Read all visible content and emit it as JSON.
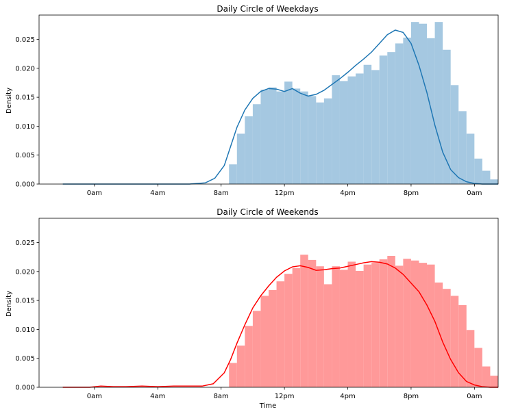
{
  "chart_data": [
    {
      "type": "histogram",
      "title": "Daily Circle of Weekdays",
      "xlabel": "",
      "ylabel": "Density",
      "xlim": [
        -3.5,
        25.5
      ],
      "ylim": [
        0,
        0.0292
      ],
      "x_ticks": [
        0,
        4,
        8,
        12,
        16,
        20,
        24
      ],
      "x_tick_labels": [
        "0am",
        "4am",
        "8am",
        "12pm",
        "4pm",
        "8pm",
        "0am"
      ],
      "y_ticks": [
        0.0,
        0.005,
        0.01,
        0.015,
        0.02,
        0.025
      ],
      "y_tick_labels": [
        "0.000",
        "0.005",
        "0.010",
        "0.015",
        "0.020",
        "0.025"
      ],
      "grid": false,
      "legend": "none",
      "bar_color": "#a5c8e1",
      "line_color": "#1f77b4",
      "bins": {
        "start": 8.5,
        "width": 0.5,
        "values": [
          0.0034,
          0.0087,
          0.0117,
          0.0138,
          0.0163,
          0.0167,
          0.016,
          0.0177,
          0.0165,
          0.016,
          0.0152,
          0.0141,
          0.0148,
          0.0188,
          0.0178,
          0.0186,
          0.0191,
          0.0206,
          0.0197,
          0.0222,
          0.0228,
          0.0243,
          0.0253,
          0.028,
          0.0277,
          0.0252,
          0.028,
          0.0232,
          0.0171,
          0.0126,
          0.0087,
          0.0044,
          0.0023,
          0.0008
        ]
      },
      "kde": {
        "x": [
          -2,
          6,
          7,
          7.6,
          8.2,
          8.6,
          9,
          9.5,
          10,
          10.5,
          11,
          11.5,
          12,
          12.5,
          13,
          13.5,
          14,
          14.5,
          15,
          15.5,
          16,
          16.5,
          17,
          17.5,
          18,
          18.5,
          19,
          19.5,
          20,
          20.5,
          21,
          21.5,
          22,
          22.5,
          23,
          23.5,
          24,
          24.5,
          25.5
        ],
        "y": [
          0.0,
          0.0,
          0.0002,
          0.001,
          0.0032,
          0.0065,
          0.0098,
          0.0128,
          0.0148,
          0.016,
          0.0165,
          0.0164,
          0.016,
          0.0165,
          0.0157,
          0.0152,
          0.0155,
          0.0162,
          0.0172,
          0.0182,
          0.0193,
          0.0205,
          0.0216,
          0.0228,
          0.0243,
          0.0258,
          0.0266,
          0.0262,
          0.0243,
          0.0205,
          0.0158,
          0.0102,
          0.0055,
          0.0025,
          0.0011,
          0.0004,
          0.0001,
          0.0,
          0.0
        ]
      }
    },
    {
      "type": "histogram",
      "title": "Daily Circle of Weekends",
      "xlabel": "Time",
      "ylabel": "Density",
      "xlim": [
        -3.5,
        25.5
      ],
      "ylim": [
        0,
        0.0292
      ],
      "x_ticks": [
        0,
        4,
        8,
        12,
        16,
        20,
        24
      ],
      "x_tick_labels": [
        "0am",
        "4am",
        "8am",
        "12pm",
        "4pm",
        "8pm",
        "0am"
      ],
      "y_ticks": [
        0.0,
        0.005,
        0.01,
        0.015,
        0.02,
        0.025
      ],
      "y_tick_labels": [
        "0.000",
        "0.005",
        "0.010",
        "0.015",
        "0.020",
        "0.025"
      ],
      "grid": false,
      "legend": "none",
      "bar_color": "#ff9999",
      "line_color": "#ff0000",
      "bins": {
        "start": 8.5,
        "width": 0.5,
        "values": [
          0.0042,
          0.0072,
          0.0106,
          0.0132,
          0.0158,
          0.0168,
          0.0183,
          0.0196,
          0.0206,
          0.0229,
          0.022,
          0.0209,
          0.0178,
          0.0209,
          0.0203,
          0.0217,
          0.0201,
          0.0212,
          0.0215,
          0.0221,
          0.0227,
          0.021,
          0.0222,
          0.0219,
          0.0215,
          0.0212,
          0.0181,
          0.017,
          0.0158,
          0.0142,
          0.0099,
          0.0068,
          0.0036,
          0.002
        ]
      },
      "kde": {
        "x": [
          -2,
          -0.3,
          0.4,
          1.2,
          2,
          3,
          4,
          5,
          6,
          6.8,
          7.5,
          8.2,
          8.6,
          9,
          9.5,
          10,
          10.5,
          11,
          11.5,
          12,
          12.5,
          13,
          13.5,
          14,
          14.5,
          15,
          15.5,
          16,
          16.5,
          17,
          17.5,
          18,
          18.5,
          19,
          19.5,
          20,
          20.5,
          21,
          21.5,
          22,
          22.5,
          23,
          23.5,
          24,
          24.5,
          25,
          25.5
        ],
        "y": [
          0.0,
          0.0,
          0.0002,
          0.0001,
          0.0001,
          0.0002,
          0.0001,
          0.0002,
          0.0002,
          0.0002,
          0.0006,
          0.0025,
          0.0048,
          0.0076,
          0.0108,
          0.0137,
          0.0158,
          0.0175,
          0.019,
          0.0201,
          0.0208,
          0.021,
          0.0207,
          0.0202,
          0.0203,
          0.0205,
          0.0206,
          0.0209,
          0.0212,
          0.0215,
          0.0217,
          0.0216,
          0.0213,
          0.0206,
          0.0195,
          0.018,
          0.0165,
          0.0142,
          0.0114,
          0.0078,
          0.0048,
          0.0025,
          0.001,
          0.0004,
          0.0001,
          0.0,
          0.0
        ]
      }
    }
  ]
}
